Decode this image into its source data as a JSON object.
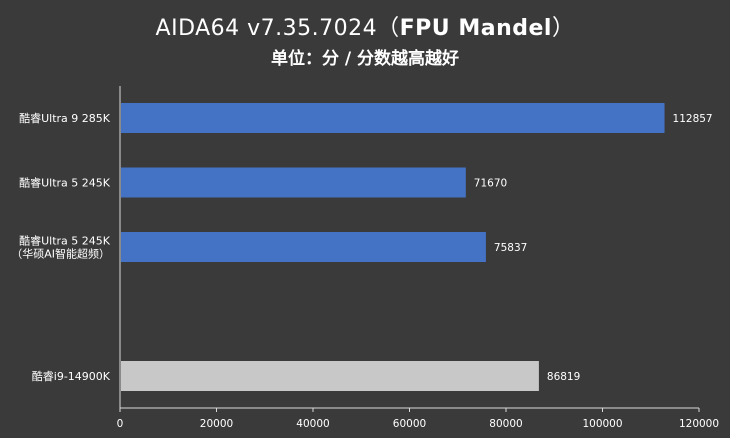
{
  "title": {
    "prefix": "AIDA64 v7.35.7024（",
    "bold": "FPU Mandel",
    "suffix": "）"
  },
  "subtitle": "单位：分 / 分数越高越好",
  "colors": {
    "background": "#3a3a3a",
    "bar_blue": "#4472c4",
    "bar_gray": "#c8c8c8",
    "axis": "#d9d9d9"
  },
  "chart_data": {
    "type": "bar",
    "orientation": "horizontal",
    "title": "AIDA64 v7.35.7024（FPU Mandel）",
    "subtitle": "单位：分 / 分数越高越好",
    "xlabel": "",
    "ylabel": "",
    "xlim": [
      0,
      120000
    ],
    "xticks": [
      0,
      20000,
      40000,
      60000,
      80000,
      100000,
      120000
    ],
    "grid": false,
    "categories": [
      [
        "酷睿Ultra 9 285K"
      ],
      [
        "酷睿Ultra 5 245K"
      ],
      [
        "酷睿Ultra 5 245K",
        "（华硕AI智能超频）"
      ],
      [
        ""
      ],
      [
        "酷睿i9-14900K"
      ]
    ],
    "values": [
      112857,
      71670,
      75837,
      null,
      86819
    ],
    "value_labels": [
      "112857",
      "71670",
      "75837",
      "",
      "86819"
    ],
    "bar_colors": [
      "#4472c4",
      "#4472c4",
      "#4472c4",
      "",
      "#c8c8c8"
    ]
  }
}
